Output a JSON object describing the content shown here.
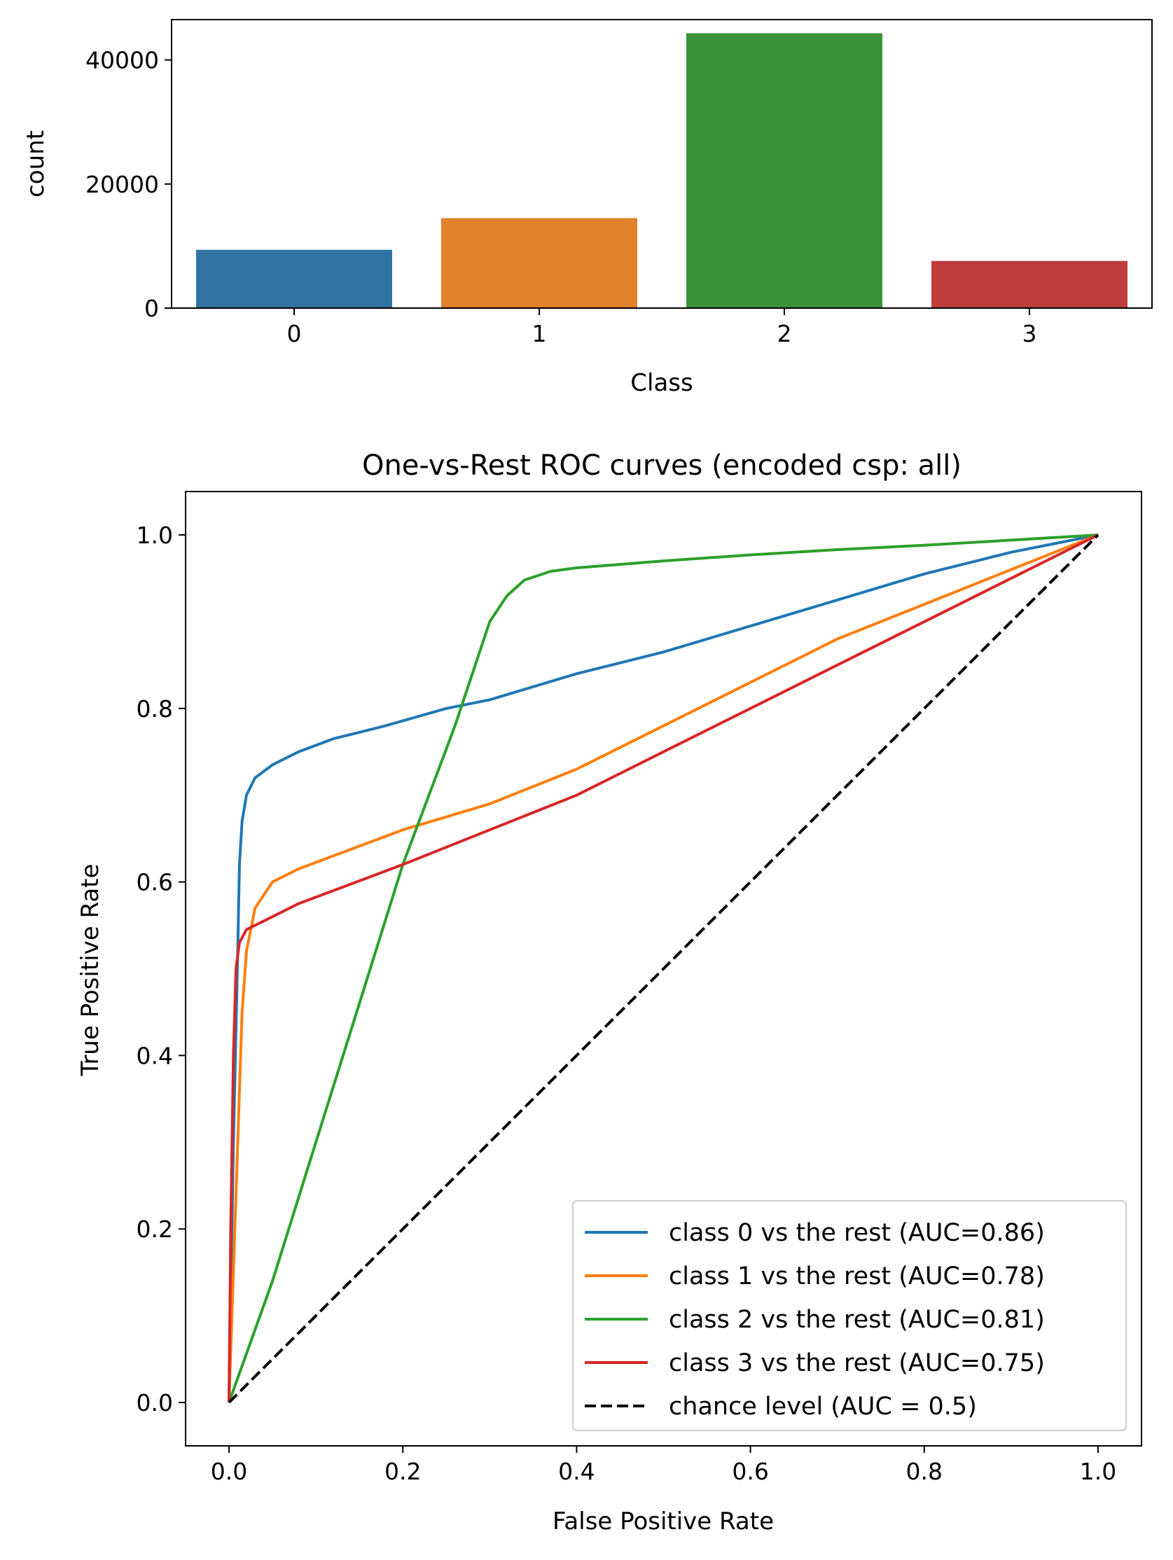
{
  "chart_data": [
    {
      "type": "bar",
      "title": "",
      "xlabel": "Class",
      "ylabel": "count",
      "categories": [
        "0",
        "1",
        "2",
        "3"
      ],
      "values": [
        9400,
        14500,
        44300,
        7600
      ],
      "colors": [
        "#3274a1",
        "#e1812c",
        "#3a923a",
        "#c03d3e"
      ],
      "ylim": [
        0,
        46500
      ],
      "yticks": [
        0,
        20000,
        40000
      ],
      "ytick_labels": [
        "0",
        "20000",
        "40000"
      ],
      "grid": false
    },
    {
      "type": "line",
      "title": "One-vs-Rest ROC curves (encoded csp: all)",
      "xlabel": "False Positive Rate",
      "ylabel": "True Positive Rate",
      "xlim": [
        -0.05,
        1.05
      ],
      "ylim": [
        -0.05,
        1.05
      ],
      "xticks": [
        0.0,
        0.2,
        0.4,
        0.6,
        0.8,
        1.0
      ],
      "xtick_labels": [
        "0.0",
        "0.2",
        "0.4",
        "0.6",
        "0.8",
        "1.0"
      ],
      "yticks": [
        0.0,
        0.2,
        0.4,
        0.6,
        0.8,
        1.0
      ],
      "ytick_labels": [
        "0.0",
        "0.2",
        "0.4",
        "0.6",
        "0.8",
        "1.0"
      ],
      "grid": false,
      "legend_position": "lower-right",
      "series": [
        {
          "name": "class 0 vs the rest (AUC=0.86)",
          "color": "#1f77b4",
          "dash": false,
          "x": [
            0,
            0.005,
            0.01,
            0.012,
            0.015,
            0.02,
            0.03,
            0.05,
            0.08,
            0.12,
            0.18,
            0.25,
            0.3,
            0.4,
            0.5,
            0.6,
            0.7,
            0.8,
            0.9,
            1.0
          ],
          "y": [
            0,
            0.3,
            0.52,
            0.62,
            0.67,
            0.7,
            0.72,
            0.735,
            0.75,
            0.765,
            0.78,
            0.8,
            0.81,
            0.84,
            0.865,
            0.895,
            0.925,
            0.955,
            0.98,
            1.0
          ]
        },
        {
          "name": "class 1 vs the rest (AUC=0.78)",
          "color": "#ff7f0e",
          "dash": false,
          "x": [
            0,
            0.005,
            0.01,
            0.015,
            0.02,
            0.03,
            0.05,
            0.08,
            0.12,
            0.2,
            0.25,
            0.3,
            0.4,
            0.5,
            0.6,
            0.7,
            0.8,
            0.9,
            1.0
          ],
          "y": [
            0,
            0.15,
            0.3,
            0.45,
            0.52,
            0.57,
            0.6,
            0.615,
            0.63,
            0.66,
            0.675,
            0.69,
            0.73,
            0.78,
            0.83,
            0.88,
            0.92,
            0.96,
            1.0
          ]
        },
        {
          "name": "class 2 vs the rest (AUC=0.81)",
          "color": "#2ca02c",
          "dash": false,
          "x": [
            0,
            0.05,
            0.1,
            0.15,
            0.2,
            0.23,
            0.26,
            0.28,
            0.3,
            0.32,
            0.34,
            0.37,
            0.4,
            0.5,
            0.6,
            0.7,
            0.8,
            0.9,
            1.0
          ],
          "y": [
            0,
            0.14,
            0.3,
            0.46,
            0.62,
            0.7,
            0.78,
            0.84,
            0.9,
            0.93,
            0.948,
            0.958,
            0.962,
            0.97,
            0.977,
            0.983,
            0.988,
            0.994,
            1.0
          ]
        },
        {
          "name": "class 3 vs the rest (AUC=0.75)",
          "color": "#d62728",
          "dash": false,
          "x": [
            0,
            0.002,
            0.005,
            0.008,
            0.012,
            0.02,
            0.03,
            0.05,
            0.08,
            0.12,
            0.2,
            0.3,
            0.4,
            0.5,
            0.6,
            0.7,
            0.8,
            0.9,
            1.0
          ],
          "y": [
            0,
            0.2,
            0.4,
            0.5,
            0.53,
            0.545,
            0.55,
            0.56,
            0.575,
            0.59,
            0.62,
            0.66,
            0.7,
            0.75,
            0.8,
            0.85,
            0.9,
            0.95,
            1.0
          ]
        },
        {
          "name": "chance level (AUC = 0.5)",
          "color": "#000000",
          "dash": true,
          "x": [
            0,
            1
          ],
          "y": [
            0,
            1
          ]
        }
      ]
    }
  ]
}
